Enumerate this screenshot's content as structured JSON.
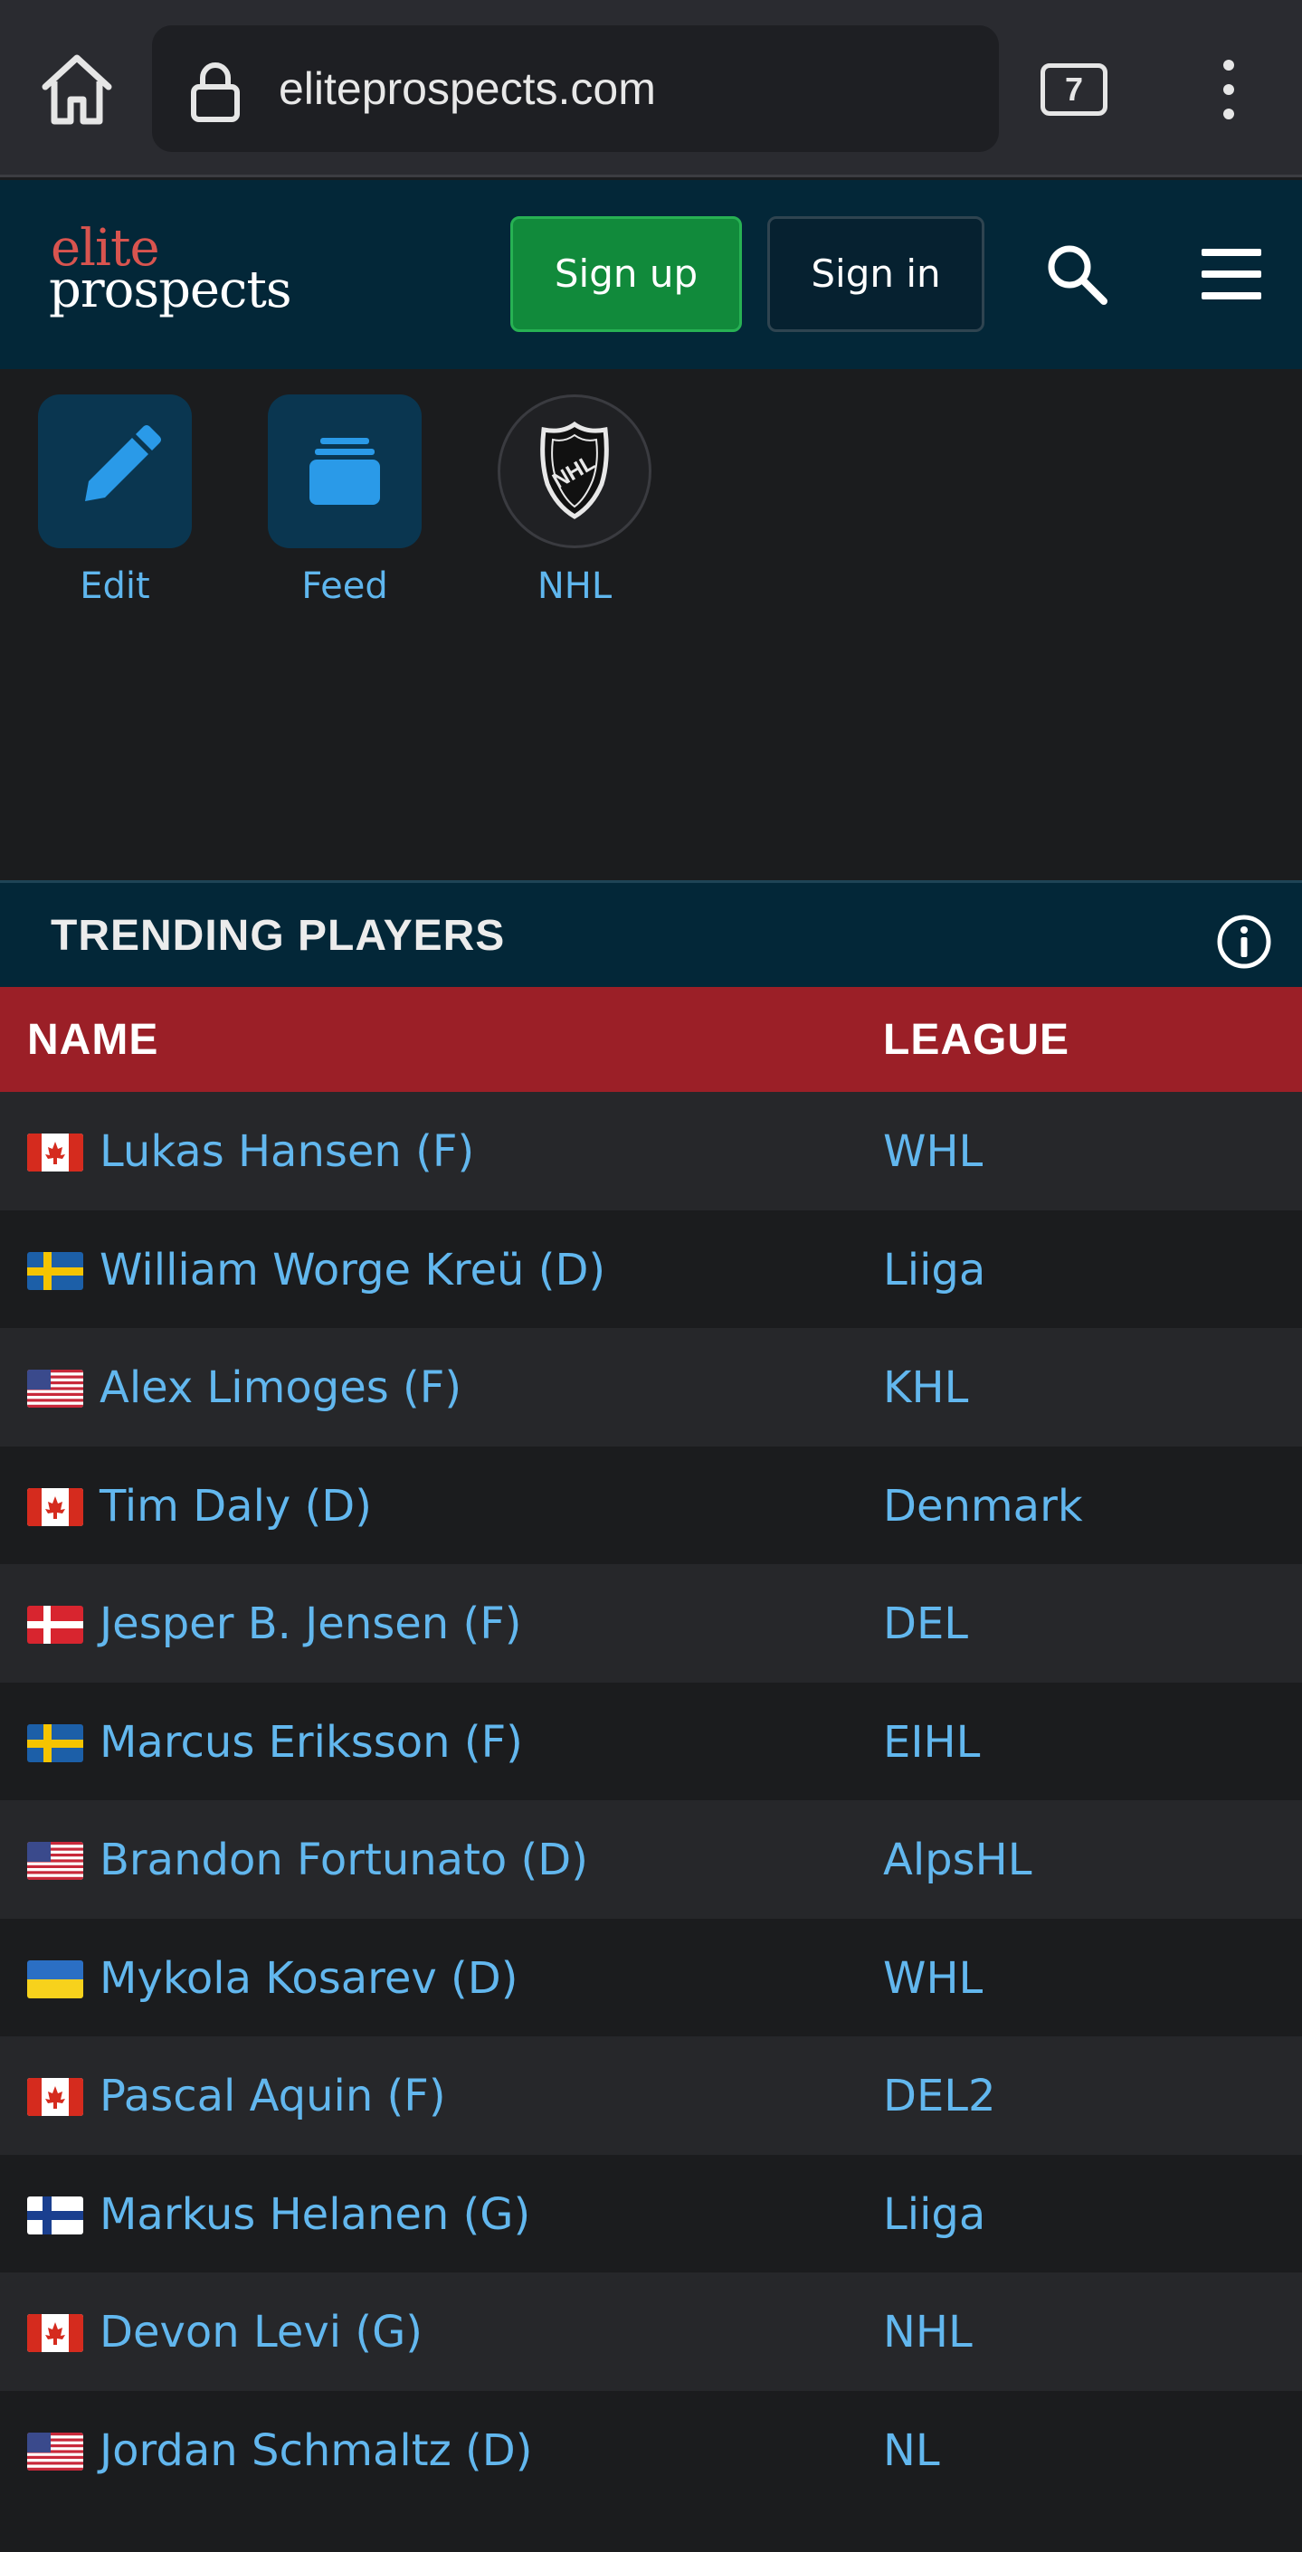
{
  "browser": {
    "url": "eliteprospects.com",
    "tab_count": "7"
  },
  "header": {
    "logo_top": "elite",
    "logo_bottom": "prospects",
    "signup_label": "Sign up",
    "signin_label": "Sign in"
  },
  "quick_links": [
    {
      "label": "Edit",
      "icon": "pencil-icon"
    },
    {
      "label": "Feed",
      "icon": "feed-stack-icon"
    },
    {
      "label": "NHL",
      "icon": "nhl-logo"
    }
  ],
  "trending": {
    "title": "TRENDING PLAYERS",
    "columns": {
      "name": "NAME",
      "league": "LEAGUE"
    },
    "players": [
      {
        "name": "Lukas Hansen (F)",
        "league": "WHL",
        "flag": "canada"
      },
      {
        "name": "William Worge Kreü (D)",
        "league": "Liiga",
        "flag": "sweden"
      },
      {
        "name": "Alex Limoges (F)",
        "league": "KHL",
        "flag": "usa"
      },
      {
        "name": "Tim Daly (D)",
        "league": "Denmark",
        "flag": "canada"
      },
      {
        "name": "Jesper B. Jensen (F)",
        "league": "DEL",
        "flag": "denmark"
      },
      {
        "name": "Marcus Eriksson (F)",
        "league": "EIHL",
        "flag": "sweden"
      },
      {
        "name": "Brandon Fortunato (D)",
        "league": "AlpsHL",
        "flag": "usa"
      },
      {
        "name": "Mykola Kosarev (D)",
        "league": "WHL",
        "flag": "ukraine"
      },
      {
        "name": "Pascal Aquin (F)",
        "league": "DEL2",
        "flag": "canada"
      },
      {
        "name": "Markus Helanen (G)",
        "league": "Liiga",
        "flag": "finland"
      },
      {
        "name": "Devon Levi (G)",
        "league": "NHL",
        "flag": "canada"
      },
      {
        "name": "Jordan Schmaltz (D)",
        "league": "NL",
        "flag": "usa"
      }
    ]
  },
  "colors": {
    "header_bg": "#032738",
    "signup_green": "#118a3b",
    "table_head_red": "#9b1f27",
    "link_blue": "#62b7ee",
    "logo_red": "#d9544f"
  }
}
